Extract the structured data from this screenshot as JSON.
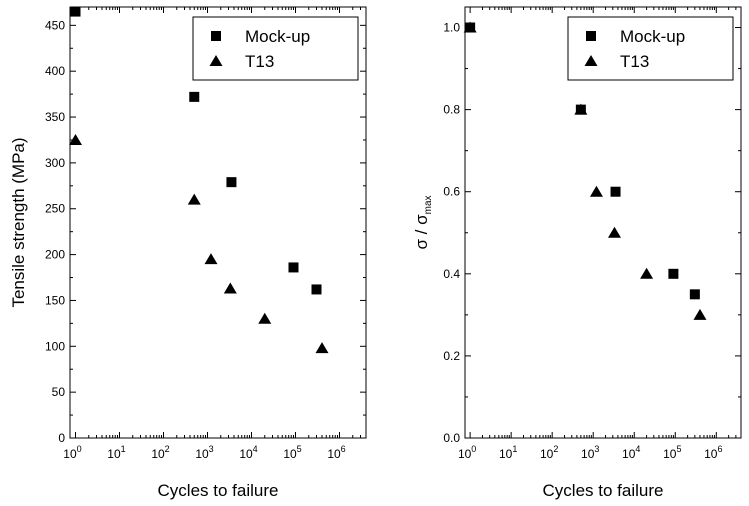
{
  "chart_data": [
    {
      "type": "scatter",
      "xlabel": "Cycles to failure",
      "ylabel": "Tensile strength (MPa)",
      "xscale": "log",
      "xlim": [
        0.75,
        4000000
      ],
      "ylim": [
        0,
        470
      ],
      "xticks": [
        {
          "base": "10",
          "exp": "0"
        },
        {
          "base": "10",
          "exp": "1"
        },
        {
          "base": "10",
          "exp": "2"
        },
        {
          "base": "10",
          "exp": "3"
        },
        {
          "base": "10",
          "exp": "4"
        },
        {
          "base": "10",
          "exp": "5"
        },
        {
          "base": "10",
          "exp": "6"
        }
      ],
      "yticks": [
        "0",
        "50",
        "100",
        "150",
        "200",
        "250",
        "300",
        "350",
        "400",
        "450"
      ],
      "legend": "top-right",
      "grid": false,
      "series": [
        {
          "name": "Mock-up",
          "marker": "square",
          "points": [
            [
              1,
              465
            ],
            [
              500,
              372
            ],
            [
              3500,
              279
            ],
            [
              90000,
              186
            ],
            [
              300000,
              162
            ]
          ]
        },
        {
          "name": "T13",
          "marker": "triangle",
          "points": [
            [
              1,
              325
            ],
            [
              500,
              260
            ],
            [
              1200,
              195
            ],
            [
              3300,
              163
            ],
            [
              20000,
              130
            ],
            [
              400000,
              98
            ]
          ]
        }
      ]
    },
    {
      "type": "scatter",
      "xlabel": "Cycles to failure",
      "ylabel_main": "σ / σ",
      "ylabel_sub": "max",
      "xscale": "log",
      "xlim": [
        0.75,
        4000000
      ],
      "ylim": [
        0,
        1.05
      ],
      "xticks": [
        {
          "base": "10",
          "exp": "0"
        },
        {
          "base": "10",
          "exp": "1"
        },
        {
          "base": "10",
          "exp": "2"
        },
        {
          "base": "10",
          "exp": "3"
        },
        {
          "base": "10",
          "exp": "4"
        },
        {
          "base": "10",
          "exp": "5"
        },
        {
          "base": "10",
          "exp": "6"
        }
      ],
      "yticks": [
        "0.0",
        "0.2",
        "0.4",
        "0.6",
        "0.8",
        "1.0"
      ],
      "legend": "top-right",
      "grid": false,
      "series": [
        {
          "name": "Mock-up",
          "marker": "square",
          "points": [
            [
              1,
              1.0
            ],
            [
              500,
              0.8
            ],
            [
              3500,
              0.6
            ],
            [
              90000,
              0.4
            ],
            [
              300000,
              0.35
            ]
          ]
        },
        {
          "name": "T13",
          "marker": "triangle",
          "points": [
            [
              1,
              1.0
            ],
            [
              500,
              0.8
            ],
            [
              1200,
              0.6
            ],
            [
              3300,
              0.5
            ],
            [
              20000,
              0.4
            ],
            [
              400000,
              0.3
            ]
          ]
        }
      ]
    }
  ]
}
